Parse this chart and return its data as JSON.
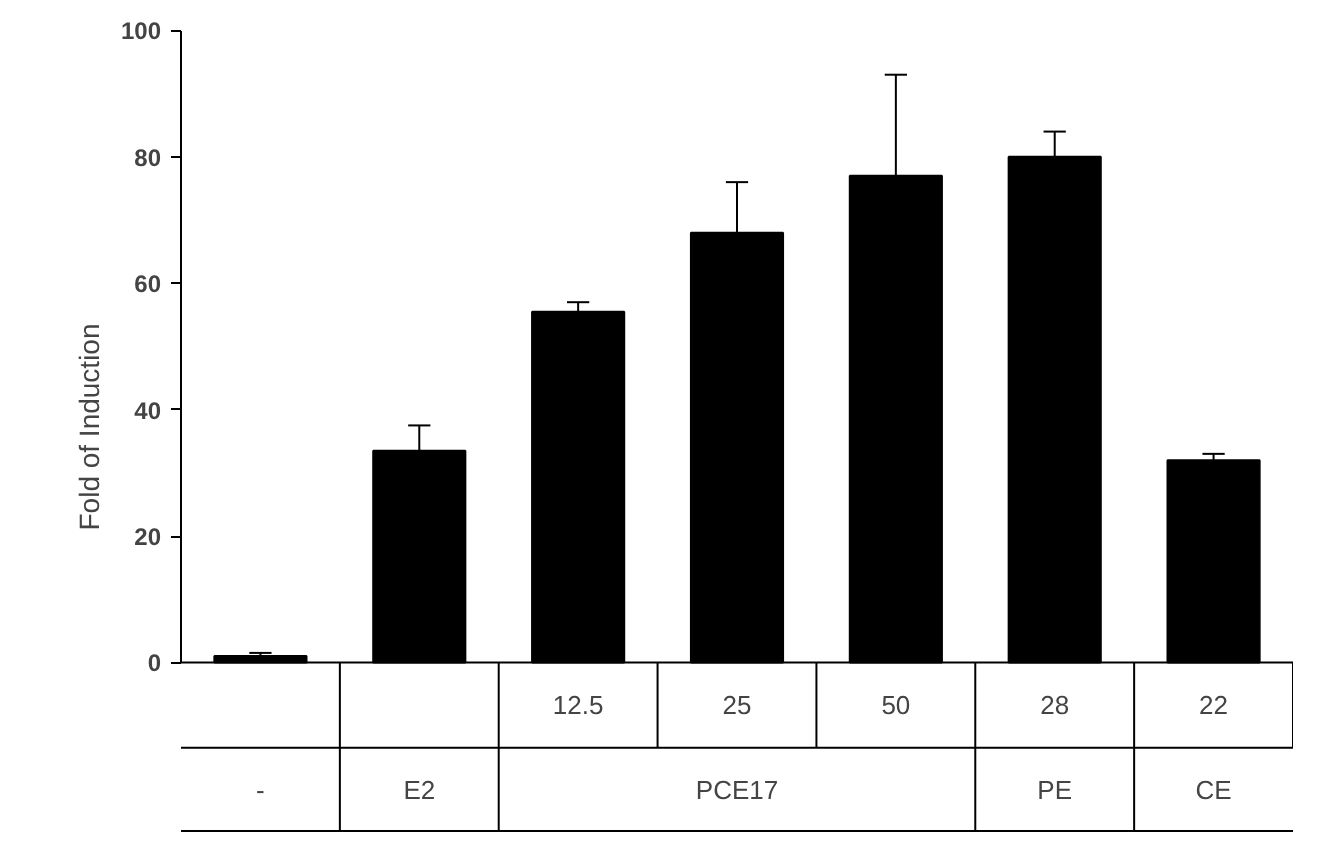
{
  "chart_data": {
    "type": "bar",
    "categories": [
      null,
      null,
      "12.5",
      "25",
      "50",
      "28",
      "22"
    ],
    "values": [
      1,
      33.5,
      55.5,
      68,
      77,
      80,
      32
    ],
    "errors": [
      0.5,
      4,
      1.5,
      8,
      16,
      4,
      1
    ],
    "color": "#000000",
    "ylabel": "Fold of Induction",
    "ylim": [
      0,
      100
    ],
    "yticks": [
      0,
      20,
      40,
      60,
      80,
      100
    ],
    "annotations": [
      "-",
      "E2",
      "PCE17",
      "PE",
      "CE"
    ],
    "grid": false
  }
}
